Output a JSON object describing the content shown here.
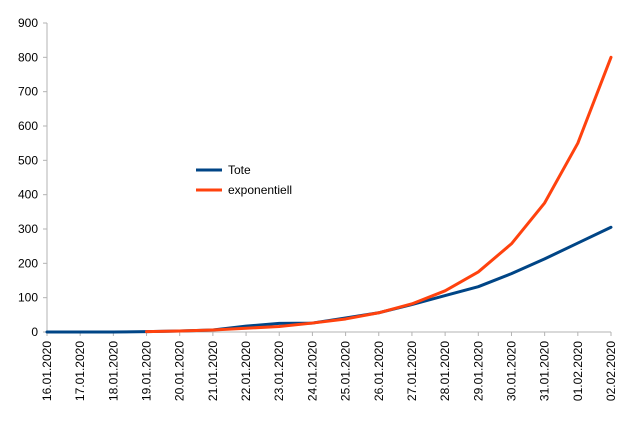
{
  "chart_data": {
    "type": "line",
    "x": [
      "16.01.2020",
      "17.01.2020",
      "18.01.2020",
      "19.01.2020",
      "20.01.2020",
      "21.01.2020",
      "22.01.2020",
      "23.01.2020",
      "24.01.2020",
      "25.01.2020",
      "26.01.2020",
      "27.01.2020",
      "28.01.2020",
      "29.01.2020",
      "30.01.2020",
      "31.01.2020",
      "01.02.2020",
      "02.02.2020"
    ],
    "series": [
      {
        "name": "Tote",
        "color": "#004586",
        "values": [
          0,
          0,
          0,
          1,
          3,
          6,
          17,
          25,
          26,
          41,
          56,
          80,
          106,
          132,
          170,
          213,
          259,
          305
        ]
      },
      {
        "name": "exponentiell",
        "color": "#ff420e",
        "values": [
          null,
          null,
          null,
          1,
          3,
          6,
          11,
          16,
          26,
          38,
          56,
          82,
          120,
          175,
          257,
          376,
          550,
          800
        ]
      }
    ],
    "y_ticks": [
      0,
      100,
      200,
      300,
      400,
      500,
      600,
      700,
      800,
      900
    ],
    "ylim": [
      0,
      900
    ],
    "grid": false,
    "legend_position": "middle-left"
  }
}
